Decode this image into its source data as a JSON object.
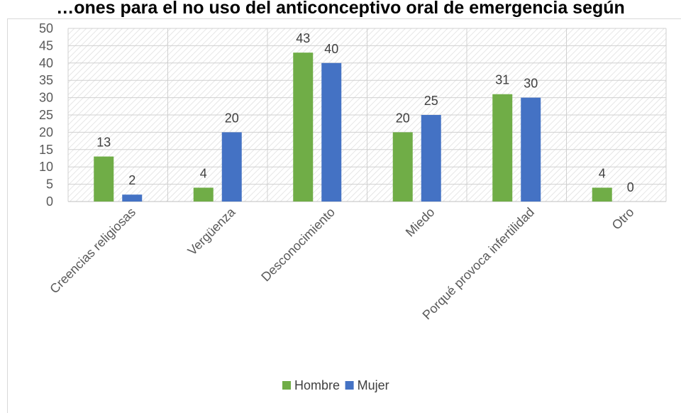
{
  "chart_data": {
    "type": "bar",
    "title": "…ones para el no uso del anticonceptivo oral de emergencia según",
    "categories": [
      "Creencias religiosas",
      "Vergüenza",
      "Desconocimiento",
      "Miedo",
      "Porqué provoca infertilidad",
      "Otro"
    ],
    "series": [
      {
        "name": "Hombre",
        "color": "#70ad47",
        "values": [
          13,
          4,
          43,
          20,
          31,
          4
        ]
      },
      {
        "name": "Mujer",
        "color": "#4472c4",
        "values": [
          2,
          20,
          40,
          25,
          30,
          0
        ]
      }
    ],
    "ylim": [
      0,
      50
    ],
    "yticks": [
      0,
      5,
      10,
      15,
      20,
      25,
      30,
      35,
      40,
      45,
      50
    ],
    "grid": true,
    "legend": "bottom",
    "data_labels": true
  }
}
